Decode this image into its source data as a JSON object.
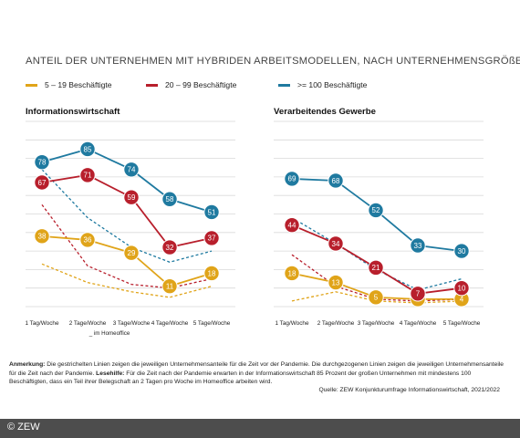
{
  "chart_title": "ANTEIL DER UNTERNEHMEN MIT HYBRIDEN ARBEITSMODELLEN, NACH UNTERNEHMENSGRÖßE",
  "colors": {
    "small": "#e0a419",
    "medium": "#b81f2c",
    "large": "#1f7aa0",
    "grid": "#d9d9d9"
  },
  "chart_data": [
    {
      "type": "line",
      "title": "Informationswirtschaft",
      "categories": [
        "1 Tag/Woche",
        "2 Tage/Woche",
        "3 Tage/Woche",
        "4 Tage/Woche",
        "5 Tage/Woche"
      ],
      "xlabel": "_ im Homeoffice",
      "ylim": [
        0,
        100
      ],
      "grid": true,
      "series": [
        {
          "name": "5 – 19 Beschäftigte",
          "period": "nach der Pandemie",
          "style": "solid",
          "color": "#e0a419",
          "values": [
            38,
            36,
            29,
            11,
            18
          ],
          "labels": [
            "38",
            "36",
            "29",
            "11",
            "18"
          ]
        },
        {
          "name": "20 – 99 Beschäftigte",
          "period": "nach der Pandemie",
          "style": "solid",
          "color": "#b81f2c",
          "values": [
            67,
            71,
            59,
            32,
            37
          ],
          "labels": [
            "67",
            "71",
            "59",
            "32",
            "37"
          ]
        },
        {
          "name": ">= 100 Beschäftigte",
          "period": "nach der Pandemie",
          "style": "solid",
          "color": "#1f7aa0",
          "values": [
            78,
            85,
            74,
            58,
            51
          ],
          "labels": [
            "78",
            "85",
            "74",
            "58",
            "51"
          ]
        },
        {
          "name": "5 – 19 Beschäftigte",
          "period": "vor der Pandemie",
          "style": "dashed",
          "color": "#e0a419",
          "values": [
            23,
            13,
            8,
            5,
            11
          ]
        },
        {
          "name": "20 – 99 Beschäftigte",
          "period": "vor der Pandemie",
          "style": "dashed",
          "color": "#b81f2c",
          "values": [
            55,
            22,
            12,
            10,
            15
          ]
        },
        {
          "name": ">= 100 Beschäftigte",
          "period": "vor der Pandemie",
          "style": "dashed",
          "color": "#1f7aa0",
          "values": [
            74,
            48,
            32,
            24,
            30
          ]
        }
      ]
    },
    {
      "type": "line",
      "title": "Verarbeitendes Gewerbe",
      "categories": [
        "1 Tag/Woche",
        "2 Tage/Woche",
        "3 Tage/Woche",
        "4 Tage/Woche",
        "5 Tage/Woche"
      ],
      "xlabel": "",
      "ylim": [
        0,
        100
      ],
      "grid": true,
      "series": [
        {
          "name": "5 – 19 Beschäftigte",
          "period": "nach der Pandemie",
          "style": "solid",
          "color": "#e0a419",
          "values": [
            18,
            13,
            5,
            4,
            4
          ],
          "labels": [
            "18",
            "13",
            "5",
            "4",
            "4"
          ]
        },
        {
          "name": "20 – 99 Beschäftigte",
          "period": "nach der Pandemie",
          "style": "solid",
          "color": "#b81f2c",
          "values": [
            44,
            34,
            21,
            7,
            10
          ],
          "labels": [
            "44",
            "34",
            "21",
            "7",
            "10"
          ]
        },
        {
          "name": ">= 100 Beschäftigte",
          "period": "nach der Pandemie",
          "style": "solid",
          "color": "#1f7aa0",
          "values": [
            69,
            68,
            52,
            33,
            30
          ],
          "labels": [
            "69",
            "68",
            "52",
            "33",
            "30"
          ]
        },
        {
          "name": "5 – 19 Beschäftigte",
          "period": "vor der Pandemie",
          "style": "dashed",
          "color": "#e0a419",
          "values": [
            3,
            8,
            3,
            2,
            3
          ]
        },
        {
          "name": "20 – 99 Beschäftigte",
          "period": "vor der Pandemie",
          "style": "dashed",
          "color": "#b81f2c",
          "values": [
            28,
            11,
            4,
            3,
            4
          ]
        },
        {
          "name": ">= 100 Beschäftigte",
          "period": "vor der Pandemie",
          "style": "dashed",
          "color": "#1f7aa0",
          "values": [
            48,
            34,
            20,
            9,
            15
          ]
        }
      ]
    }
  ],
  "legend": [
    {
      "label": "5 – 19 Beschäftigte",
      "color": "#e0a419"
    },
    {
      "label": "20 – 99 Beschäftigte",
      "color": "#b81f2c"
    },
    {
      "label": ">= 100 Beschäftigte",
      "color": "#1f7aa0"
    }
  ],
  "note": {
    "anmerkung_label": "Anmerkung:",
    "anmerkung_text": "Die gestrichelten Linien zeigen die jeweiligen Unternehmensanteile für die Zeit vor der Pandemie. Die durchgezogenen Linien zeigen die jeweiligen Unternehmensanteile für die Zeit nach der Pandemie.",
    "lesehilfe_label": "Lesehilfe:",
    "lesehilfe_text": "Für die Zeit nach der Pandemie erwarten in der Informationswirtschaft 85 Prozent der großen Unternehmen mit mindestens 100 Beschäftigten, dass ein Teil ihrer Belegschaft an 2 Tagen pro Woche im Homeoffice arbeiten wird."
  },
  "source": "Quelle: ZEW Konjunkturumfrage Informationswirtschaft, 2021/2022",
  "footer": "© ZEW"
}
